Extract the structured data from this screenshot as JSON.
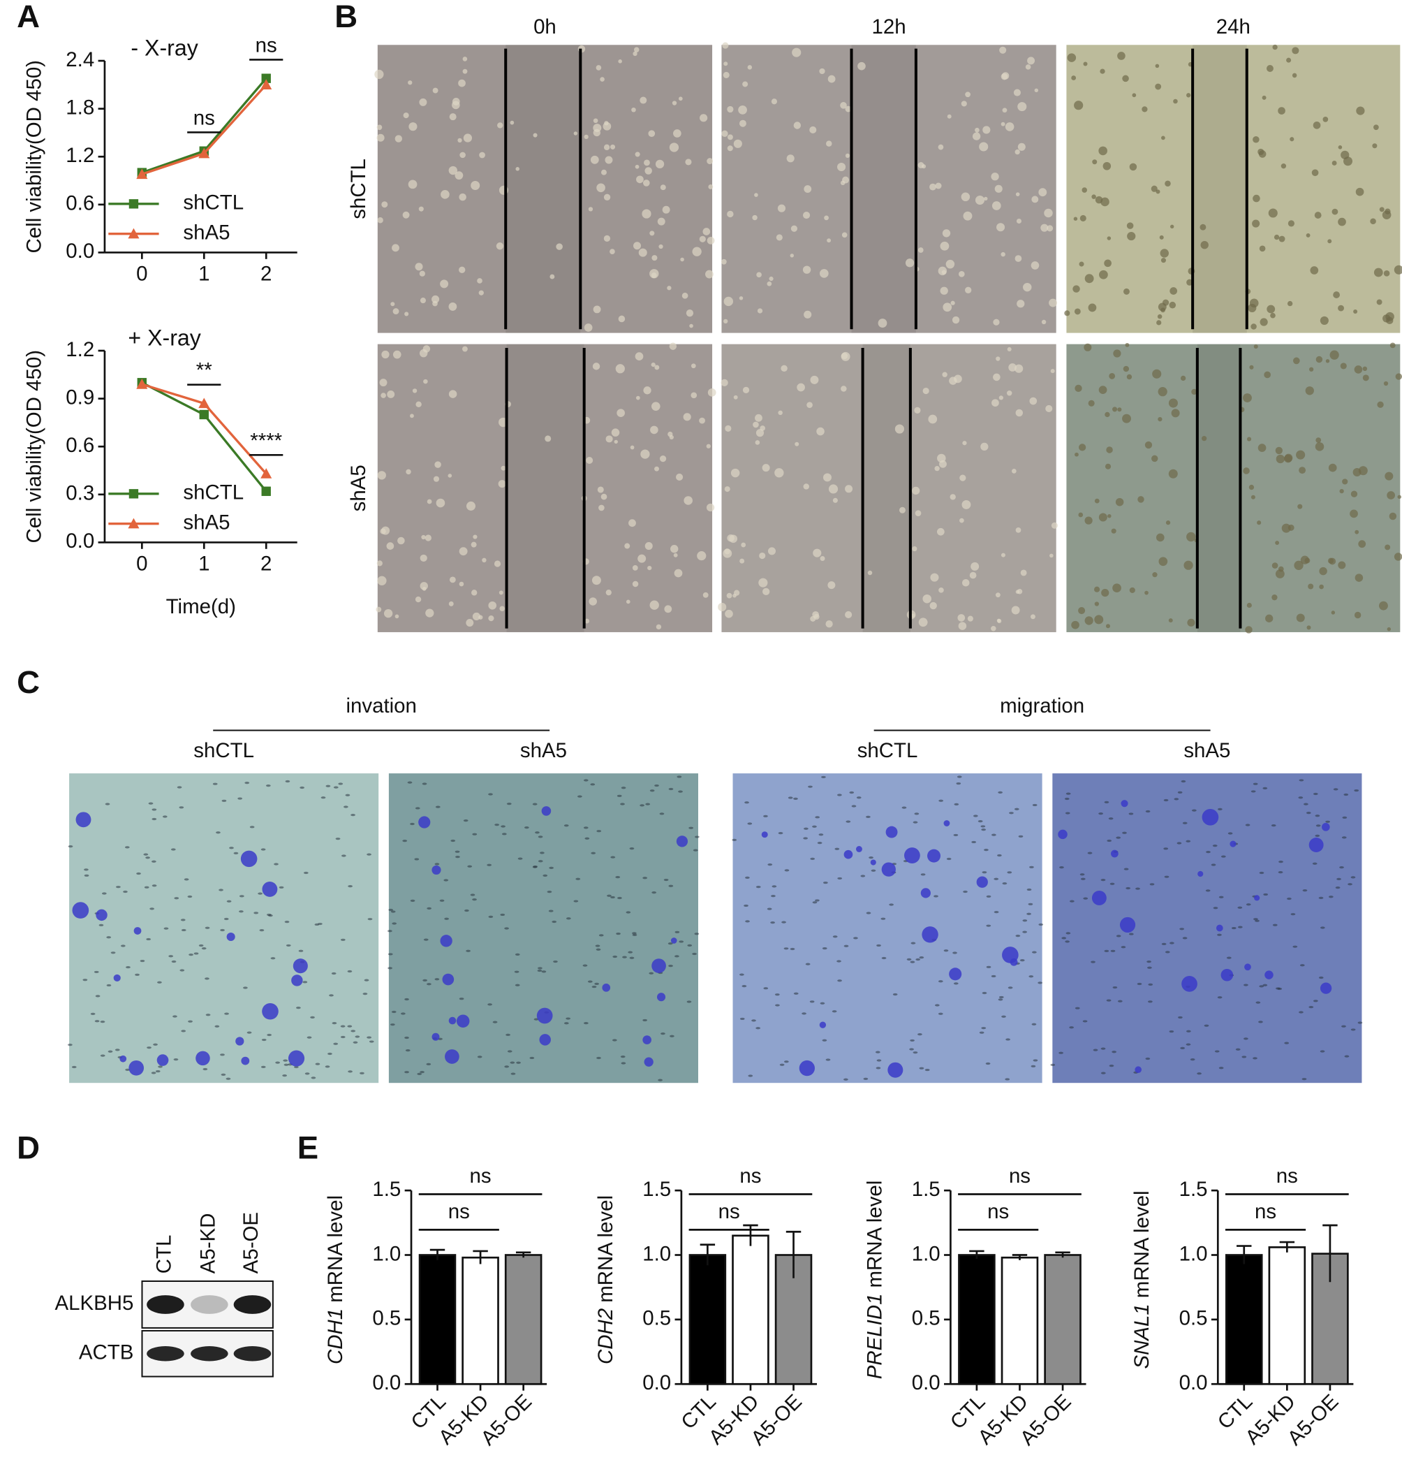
{
  "panel_labels": [
    "A",
    "B",
    "C",
    "D",
    "E"
  ],
  "wound_healing": {
    "timepoints": [
      "0h",
      "12h",
      "24h"
    ],
    "groups": [
      "shCTL",
      "shA5"
    ]
  },
  "transwell": {
    "assays": [
      {
        "name": "invation",
        "groups": [
          "shCTL",
          "shA5"
        ]
      },
      {
        "name": "migration",
        "groups": [
          "shCTL",
          "shA5"
        ]
      }
    ]
  },
  "western_blot": {
    "lanes": [
      "CTL",
      "A5-KD",
      "A5-OE"
    ],
    "proteins": [
      "ALKBH5",
      "ACTB"
    ]
  },
  "chart_data": [
    {
      "type": "line",
      "title": "- X-ray",
      "ylabel": "Cell viability(OD 450)",
      "x": [
        0,
        1,
        2
      ],
      "xlim": [
        -0.6,
        2.5
      ],
      "xticks": [
        0,
        1,
        2
      ],
      "ylim": [
        0,
        2.4
      ],
      "yticks": [
        {
          "value": 0,
          "label": "0.0"
        },
        0.6,
        1.2,
        1.8,
        2.4
      ],
      "series": [
        {
          "name": "shCTL",
          "color": "#3b7a26",
          "marker": "square",
          "values": [
            1.0,
            1.27,
            2.18
          ]
        },
        {
          "name": "shA5",
          "color": "#e2643c",
          "marker": "triangle",
          "values": [
            0.98,
            1.24,
            2.1
          ]
        }
      ],
      "annotations": [
        {
          "x": 1,
          "label": "ns"
        },
        {
          "x": 2,
          "label": "ns"
        }
      ],
      "legend": "lower left"
    },
    {
      "type": "line",
      "title": "+ X-ray",
      "ylabel": "Cell viability(OD 450)",
      "xlabel": "Time(d)",
      "x": [
        0,
        1,
        2
      ],
      "xlim": [
        -0.6,
        2.5
      ],
      "xticks": [
        0,
        1,
        2
      ],
      "ylim": [
        0,
        1.2
      ],
      "yticks": [
        {
          "value": 0,
          "label": "0.0"
        },
        0.3,
        0.6,
        0.9,
        1.2
      ],
      "series": [
        {
          "name": "shCTL",
          "color": "#3b7a26",
          "marker": "square",
          "values": [
            1.0,
            0.8,
            0.32
          ]
        },
        {
          "name": "shA5",
          "color": "#e2643c",
          "marker": "triangle",
          "values": [
            0.99,
            0.87,
            0.43
          ]
        }
      ],
      "annotations": [
        {
          "x": 1,
          "label": "**"
        },
        {
          "x": 2,
          "label": "****"
        }
      ],
      "legend": "lower left"
    },
    {
      "type": "bar",
      "ylabel": {
        "gene": "CDH1",
        "text": "mRNA level"
      },
      "categories": [
        "CTL",
        "A5-KD",
        "A5-OE"
      ],
      "values": [
        1.0,
        0.98,
        1.0
      ],
      "errors": [
        0.04,
        0.05,
        0.02
      ],
      "colors": [
        "#000000",
        "#ffffff",
        "#8c8c8c"
      ],
      "ylim": [
        0,
        1.5
      ],
      "yticks": [
        {
          "value": 0,
          "label": "0.0"
        },
        0.5,
        {
          "value": 1,
          "label": "1.0"
        },
        1.5
      ],
      "annotations": [
        {
          "from": 0,
          "to": 2,
          "label": "ns"
        },
        {
          "from": 0,
          "to": 1,
          "label": "ns"
        }
      ]
    },
    {
      "type": "bar",
      "ylabel": {
        "gene": "CDH2",
        "text": "mRNA level"
      },
      "categories": [
        "CTL",
        "A5-KD",
        "A5-OE"
      ],
      "values": [
        1.0,
        1.15,
        1.0
      ],
      "errors": [
        0.08,
        0.08,
        0.18
      ],
      "colors": [
        "#000000",
        "#ffffff",
        "#8c8c8c"
      ],
      "ylim": [
        0,
        1.5
      ],
      "yticks": [
        {
          "value": 0,
          "label": "0.0"
        },
        0.5,
        {
          "value": 1,
          "label": "1.0"
        },
        1.5
      ],
      "annotations": [
        {
          "from": 0,
          "to": 2,
          "label": "ns"
        },
        {
          "from": 0,
          "to": 1,
          "label": "ns"
        }
      ]
    },
    {
      "type": "bar",
      "ylabel": {
        "gene": "PRELID1",
        "text": "mRNA level"
      },
      "categories": [
        "CTL",
        "A5-KD",
        "A5-OE"
      ],
      "values": [
        1.0,
        0.98,
        1.0
      ],
      "errors": [
        0.03,
        0.02,
        0.02
      ],
      "colors": [
        "#000000",
        "#ffffff",
        "#8c8c8c"
      ],
      "ylim": [
        0,
        1.5
      ],
      "yticks": [
        {
          "value": 0,
          "label": "0.0"
        },
        0.5,
        {
          "value": 1,
          "label": "1.0"
        },
        1.5
      ],
      "annotations": [
        {
          "from": 0,
          "to": 2,
          "label": "ns"
        },
        {
          "from": 0,
          "to": 1,
          "label": "ns"
        }
      ]
    },
    {
      "type": "bar",
      "ylabel": {
        "gene": "SNAL1",
        "text": "mRNA level"
      },
      "categories": [
        "CTL",
        "A5-KD",
        "A5-OE"
      ],
      "values": [
        1.0,
        1.06,
        1.01
      ],
      "errors": [
        0.07,
        0.04,
        0.22
      ],
      "colors": [
        "#000000",
        "#ffffff",
        "#8c8c8c"
      ],
      "ylim": [
        0,
        1.5
      ],
      "yticks": [
        {
          "value": 0,
          "label": "0.0"
        },
        0.5,
        {
          "value": 1,
          "label": "1.0"
        },
        1.5
      ],
      "annotations": [
        {
          "from": 0,
          "to": 2,
          "label": "ns"
        },
        {
          "from": 0,
          "to": 1,
          "label": "ns"
        }
      ]
    }
  ]
}
